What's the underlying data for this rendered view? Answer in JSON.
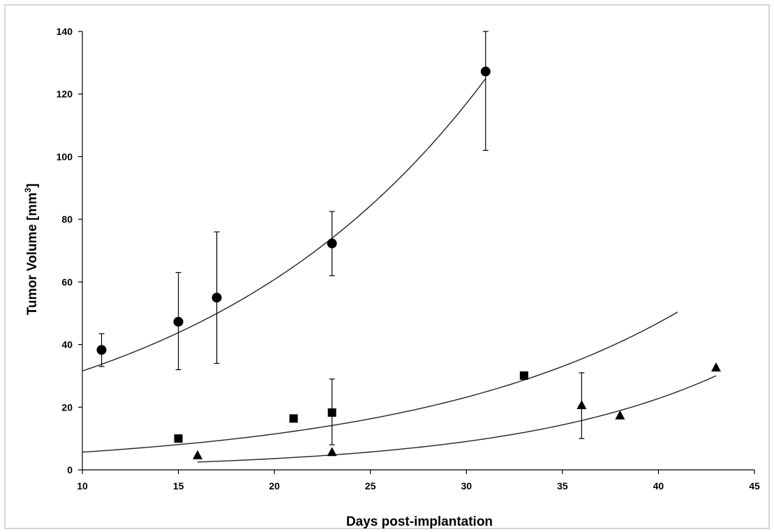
{
  "chart_data": {
    "type": "scatter",
    "title": "",
    "xlabel": "Days post-implantation",
    "ylabel": "Tumor Volume [mm",
    "ylabel_sup": "3",
    "ylabel_suffix": "]",
    "xlim": [
      10,
      45
    ],
    "ylim": [
      0,
      140
    ],
    "x_ticks": [
      10,
      15,
      20,
      25,
      30,
      35,
      40,
      45
    ],
    "y_ticks": [
      0,
      20,
      40,
      60,
      80,
      100,
      120,
      140
    ],
    "grid": false,
    "legend": "none",
    "series": [
      {
        "marker": "circle",
        "points": [
          {
            "x": 11,
            "y": 38.3,
            "err_low": 33.0,
            "err_high": 43.5
          },
          {
            "x": 15,
            "y": 47.3,
            "err_low": 32.0,
            "err_high": 63.0
          },
          {
            "x": 17,
            "y": 55.0,
            "err_low": 34.0,
            "err_high": 76.0
          },
          {
            "x": 23,
            "y": 72.3,
            "err_low": 62.0,
            "err_high": 82.5
          },
          {
            "x": 31,
            "y": 127.2,
            "err_low": 102.0,
            "err_high": 140.0
          }
        ],
        "trendline": {
          "a": 16.4,
          "b": 0.0655,
          "x_from": 10,
          "x_to": 31
        }
      },
      {
        "marker": "square",
        "points": [
          {
            "x": 15,
            "y": 10.0
          },
          {
            "x": 21,
            "y": 16.4
          },
          {
            "x": 23,
            "y": 18.3,
            "err_low": 8.0,
            "err_high": 29.0
          },
          {
            "x": 33,
            "y": 30.1
          }
        ],
        "trendline": {
          "a": 2.8,
          "b": 0.0705,
          "x_from": 10,
          "x_to": 41
        }
      },
      {
        "marker": "triangle",
        "points": [
          {
            "x": 16,
            "y": 4.5
          },
          {
            "x": 23,
            "y": 5.5
          },
          {
            "x": 36,
            "y": 20.5,
            "err_low": 10.0,
            "err_high": 31.0
          },
          {
            "x": 38,
            "y": 17.2
          },
          {
            "x": 43,
            "y": 32.5
          }
        ],
        "trendline": {
          "a": 0.57,
          "b": 0.0922,
          "x_from": 16,
          "x_to": 43
        }
      }
    ]
  }
}
